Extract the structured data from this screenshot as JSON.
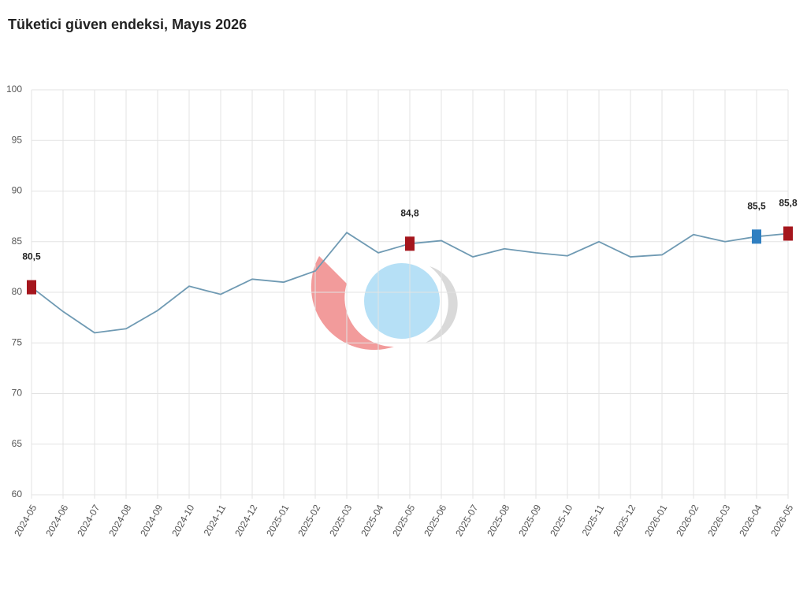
{
  "chart_data": {
    "type": "line",
    "title": "Tüketici güven endeksi, Mayıs 2026",
    "categories": [
      "2024-05",
      "2024-06",
      "2024-07",
      "2024-08",
      "2024-09",
      "2024-10",
      "2024-11",
      "2024-12",
      "2025-01",
      "2025-02",
      "2025-03",
      "2025-04",
      "2025-05",
      "2025-06",
      "2025-07",
      "2025-08",
      "2025-09",
      "2025-10",
      "2025-11",
      "2025-12",
      "2026-01",
      "2026-02",
      "2026-03",
      "2026-04",
      "2026-05"
    ],
    "values": [
      80.5,
      78.1,
      76.0,
      76.4,
      78.2,
      80.6,
      79.8,
      81.3,
      81.0,
      82.1,
      85.9,
      83.9,
      84.8,
      85.1,
      83.5,
      84.3,
      83.9,
      83.6,
      85.0,
      83.5,
      83.7,
      85.7,
      85.0,
      85.5,
      85.8
    ],
    "value_labels": [
      "80,5",
      null,
      null,
      null,
      null,
      null,
      null,
      null,
      null,
      null,
      null,
      null,
      "84,8",
      null,
      null,
      null,
      null,
      null,
      null,
      null,
      null,
      null,
      null,
      "85,5",
      "85,8"
    ],
    "marker_colors": [
      "#a5161d",
      null,
      null,
      null,
      null,
      null,
      null,
      null,
      null,
      null,
      null,
      null,
      "#a5161d",
      null,
      null,
      null,
      null,
      null,
      null,
      null,
      null,
      null,
      null,
      "#2f7fc1",
      "#a5161d"
    ],
    "color": "#6f9ab3",
    "ylim": [
      60,
      100
    ],
    "yticks": [
      60,
      65,
      70,
      75,
      80,
      85,
      90,
      95,
      100
    ],
    "grid": true
  }
}
